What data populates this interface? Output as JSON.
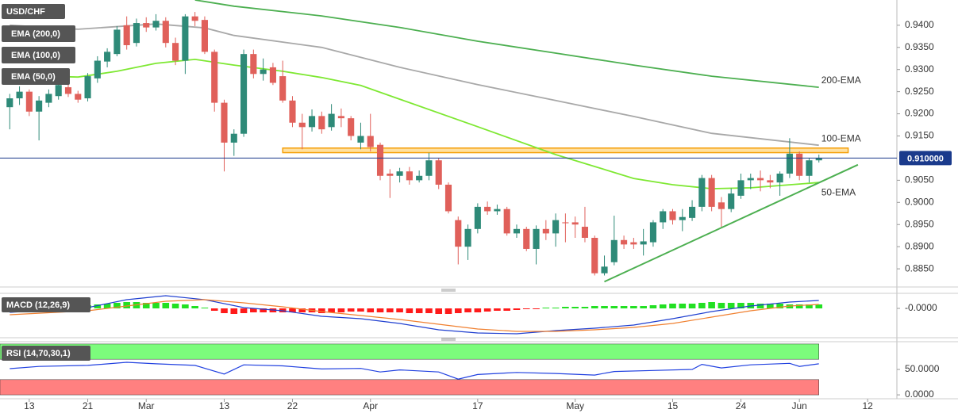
{
  "chart_data": [
    {
      "type": "candlestick",
      "title": "USD/CHF",
      "open": [
        0.9215,
        0.9235,
        0.925,
        0.9205,
        0.9225,
        0.924,
        0.926,
        0.9245,
        0.9235,
        0.928,
        0.9318,
        0.9335,
        0.94,
        0.936,
        0.9405,
        0.9395,
        0.941,
        0.936,
        0.932,
        0.942,
        0.9412,
        0.934,
        0.9225,
        0.9135,
        0.9155,
        0.9335,
        0.929,
        0.9305,
        0.9285,
        0.923,
        0.918,
        0.917,
        0.9195,
        0.917,
        0.9195,
        0.919,
        0.9135,
        0.915,
        0.913,
        0.9065,
        0.906,
        0.907,
        0.905,
        0.906,
        0.9095,
        0.904,
        0.896,
        0.89,
        0.894,
        0.899,
        0.898,
        0.8985,
        0.893,
        0.894,
        0.8895,
        0.894,
        0.893,
        0.8955,
        0.8955,
        0.8945,
        0.892,
        0.884,
        0.8865,
        0.8915,
        0.891,
        0.8905,
        0.891,
        0.8955,
        0.898,
        0.896,
        0.8965,
        0.899,
        0.9055,
        0.9,
        0.8985,
        0.9015,
        0.905,
        0.9055,
        0.905,
        0.9045,
        0.9065,
        0.911,
        0.906,
        0.9095
      ],
      "high": [
        0.9245,
        0.9262,
        0.9255,
        0.924,
        0.9255,
        0.929,
        0.93,
        0.9252,
        0.9292,
        0.933,
        0.9348,
        0.9398,
        0.942,
        0.9415,
        0.9418,
        0.9425,
        0.9418,
        0.9372,
        0.9425,
        0.943,
        0.942,
        0.9345,
        0.9232,
        0.9165,
        0.9345,
        0.9345,
        0.9325,
        0.9315,
        0.932,
        0.924,
        0.92,
        0.921,
        0.9205,
        0.9222,
        0.9212,
        0.9195,
        0.918,
        0.92,
        0.9135,
        0.9075,
        0.9078,
        0.908,
        0.9072,
        0.9112,
        0.91,
        0.9045,
        0.8968,
        0.895,
        0.8998,
        0.9002,
        0.8995,
        0.899,
        0.895,
        0.8945,
        0.8948,
        0.896,
        0.8975,
        0.8975,
        0.8968,
        0.899,
        0.8925,
        0.888,
        0.897,
        0.8925,
        0.892,
        0.894,
        0.896,
        0.8985,
        0.8985,
        0.8985,
        0.9005,
        0.9062,
        0.9062,
        0.9012,
        0.9032,
        0.9065,
        0.9065,
        0.9072,
        0.9062,
        0.907,
        0.9145,
        0.9115,
        0.91,
        0.9108
      ],
      "low": [
        0.9165,
        0.922,
        0.9195,
        0.914,
        0.9215,
        0.9232,
        0.9238,
        0.9225,
        0.9228,
        0.927,
        0.9305,
        0.933,
        0.9345,
        0.9352,
        0.9385,
        0.9388,
        0.935,
        0.931,
        0.929,
        0.9398,
        0.9335,
        0.9205,
        0.907,
        0.9105,
        0.9148,
        0.928,
        0.9275,
        0.9265,
        0.9225,
        0.917,
        0.912,
        0.916,
        0.9155,
        0.9162,
        0.917,
        0.914,
        0.912,
        0.9115,
        0.905,
        0.901,
        0.9045,
        0.904,
        0.9045,
        0.905,
        0.903,
        0.8975,
        0.886,
        0.887,
        0.893,
        0.8972,
        0.8972,
        0.8925,
        0.892,
        0.889,
        0.886,
        0.8915,
        0.89,
        0.891,
        0.892,
        0.891,
        0.8835,
        0.8835,
        0.8858,
        0.8895,
        0.8895,
        0.888,
        0.89,
        0.894,
        0.895,
        0.8935,
        0.8958,
        0.898,
        0.898,
        0.8945,
        0.8978,
        0.9008,
        0.903,
        0.9025,
        0.9032,
        0.9015,
        0.9055,
        0.905,
        0.9045,
        0.909
      ],
      "close": [
        0.9235,
        0.925,
        0.9205,
        0.923,
        0.9245,
        0.9265,
        0.9245,
        0.9232,
        0.9285,
        0.932,
        0.934,
        0.939,
        0.9355,
        0.9405,
        0.9395,
        0.941,
        0.936,
        0.932,
        0.942,
        0.941,
        0.934,
        0.9225,
        0.9135,
        0.9155,
        0.9335,
        0.929,
        0.93,
        0.927,
        0.923,
        0.918,
        0.917,
        0.9195,
        0.9165,
        0.92,
        0.919,
        0.915,
        0.915,
        0.9125,
        0.906,
        0.906,
        0.907,
        0.905,
        0.906,
        0.9095,
        0.904,
        0.898,
        0.89,
        0.894,
        0.899,
        0.898,
        0.8985,
        0.893,
        0.894,
        0.8895,
        0.894,
        0.893,
        0.896,
        0.8953,
        0.895,
        0.892,
        0.884,
        0.8855,
        0.8915,
        0.8905,
        0.8905,
        0.8912,
        0.8955,
        0.898,
        0.896,
        0.8967,
        0.899,
        0.9055,
        0.899,
        0.8985,
        0.902,
        0.905,
        0.9055,
        0.905,
        0.9045,
        0.9065,
        0.911,
        0.906,
        0.9095,
        0.91
      ],
      "up_color": "#2e8a78",
      "down_color": "#e0605a",
      "xlim": [
        -1,
        91
      ],
      "xticks": [
        {
          "value": 2,
          "label": "13"
        },
        {
          "value": 8,
          "label": "21"
        },
        {
          "value": 14,
          "label": "Mar"
        },
        {
          "value": 22,
          "label": "13"
        },
        {
          "value": 29,
          "label": "22"
        },
        {
          "value": 37,
          "label": "Apr"
        },
        {
          "value": 48,
          "label": "17"
        },
        {
          "value": 58,
          "label": "May"
        },
        {
          "value": 68,
          "label": "15"
        },
        {
          "value": 75,
          "label": "24"
        },
        {
          "value": 81,
          "label": "Jun"
        },
        {
          "value": 88,
          "label": "12"
        }
      ],
      "ylim": [
        0.8809,
        0.9457
      ],
      "yticks": [
        {
          "value": 0.94,
          "label": "0.9400"
        },
        {
          "value": 0.935,
          "label": "0.9350"
        },
        {
          "value": 0.93,
          "label": "0.9300"
        },
        {
          "value": 0.925,
          "label": "0.9250"
        },
        {
          "value": 0.92,
          "label": "0.9200"
        },
        {
          "value": 0.915,
          "label": "0.9150"
        },
        {
          "value": 0.905,
          "label": "0.9050"
        },
        {
          "value": 0.9,
          "label": "0.9000"
        },
        {
          "value": 0.895,
          "label": "0.8950"
        },
        {
          "value": 0.89,
          "label": "0.8900"
        },
        {
          "value": 0.885,
          "label": "0.8850"
        }
      ],
      "lines": [
        {
          "name": "EMA (200,0)",
          "annotation": "200-EMA",
          "color": "#4caf50",
          "x": [
            19,
            23,
            32,
            40,
            48,
            56,
            64,
            72,
            83
          ],
          "values": [
            0.9457,
            0.9443,
            0.9421,
            0.9395,
            0.9364,
            0.9337,
            0.931,
            0.9285,
            0.926
          ]
        },
        {
          "name": "EMA (100,0)",
          "annotation": "100-EMA",
          "color": "#a8a8a8",
          "x": [
            0,
            7,
            15,
            20,
            23,
            32,
            40,
            48,
            56,
            64,
            72,
            83
          ],
          "values": [
            0.94,
            0.9391,
            0.9403,
            0.9394,
            0.9377,
            0.935,
            0.9305,
            0.9266,
            0.923,
            0.9194,
            0.9156,
            0.9129
          ]
        },
        {
          "name": "EMA (50,0)",
          "annotation": "50-EMA",
          "color": "#7ee832",
          "x": [
            0,
            7,
            11,
            15,
            19,
            23,
            28,
            32,
            36,
            40,
            48,
            56,
            60,
            64,
            68,
            72,
            76,
            83
          ],
          "values": [
            0.9287,
            0.9283,
            0.9296,
            0.9314,
            0.9323,
            0.931,
            0.9296,
            0.9282,
            0.9264,
            0.9233,
            0.9171,
            0.9108,
            0.9081,
            0.9054,
            0.904,
            0.9031,
            0.9033,
            0.9045
          ]
        }
      ],
      "support": {
        "color": "#f5a00a",
        "x": [
          28,
          86
        ],
        "values": [
          0.9115,
          0.912
        ]
      },
      "trendline": {
        "color": "#4caf50",
        "x": [
          61,
          87
        ],
        "values": [
          0.8821,
          0.9085
        ]
      },
      "last_price": {
        "value": 0.91,
        "label": "0.910000",
        "color": "#1a3a8c"
      }
    },
    {
      "type": "macd",
      "title": "MACD (12,26,9)",
      "ylim": [
        -0.0037,
        0.0018
      ],
      "yticks": [
        {
          "value": 0,
          "label": "-0.0000"
        }
      ],
      "histogram": [
        0.0003,
        0.0003,
        0.0003,
        0.0004,
        0.0004,
        0.0004,
        0.0004,
        0.0004,
        0.0004,
        0.0005,
        0.0006,
        0.0007,
        0.0008,
        0.0008,
        0.0007,
        0.0007,
        0.0007,
        0.0006,
        0.0005,
        0.0003,
        0.0001,
        -0.0003,
        -0.0006,
        -0.0007,
        -0.0006,
        -0.0005,
        -0.0005,
        -0.0005,
        -0.0005,
        -0.0005,
        -0.0005,
        -0.0005,
        -0.0006,
        -0.0005,
        -0.0005,
        -0.0004,
        -0.0004,
        -0.0005,
        -0.0005,
        -0.0005,
        -0.0005,
        -0.0006,
        -0.0006,
        -0.0006,
        -0.0007,
        -0.0007,
        -0.0006,
        -0.0005,
        -0.0005,
        -0.0004,
        -0.0003,
        -0.0003,
        -0.0002,
        -0.0001,
        -0.0001,
        0.0001,
        0.0001,
        0.0002,
        0.0002,
        0.0002,
        0.0003,
        0.0003,
        0.0003,
        0.0003,
        0.0003,
        0.0003,
        0.0004,
        0.0005,
        0.0006,
        0.0006,
        0.0006,
        0.0007,
        0.0008,
        0.0007,
        0.0007,
        0.0007,
        0.0007,
        0.0006,
        0.0006,
        0.0006,
        0.0005,
        0.0005,
        0.0005,
        0.0005
      ],
      "up_color": "#22e022",
      "down_color": "#ff1a1a",
      "lines": [
        {
          "color": "#1f3fd0",
          "x": [
            0,
            8,
            12,
            16,
            20,
            24,
            28,
            32,
            36,
            40,
            44,
            48,
            52,
            56,
            60,
            64,
            68,
            72,
            76,
            80,
            83
          ],
          "values": [
            -0.0005,
            0.0001,
            0.0011,
            0.0016,
            0.0011,
            0.0001,
            -0.0003,
            -0.001,
            -0.0013,
            -0.0019,
            -0.0027,
            -0.0031,
            -0.0032,
            -0.0028,
            -0.0025,
            -0.0021,
            -0.0013,
            -0.0004,
            0.0003,
            0.0008,
            0.001
          ]
        },
        {
          "color": "#f08030",
          "x": [
            0,
            8,
            12,
            16,
            20,
            24,
            28,
            32,
            36,
            40,
            44,
            48,
            52,
            56,
            60,
            64,
            68,
            72,
            76,
            80,
            83
          ],
          "values": [
            -0.0008,
            -0.0003,
            0.0003,
            0.0009,
            0.0011,
            0.0007,
            0.0002,
            -0.0004,
            -0.0009,
            -0.0014,
            -0.002,
            -0.0026,
            -0.0029,
            -0.0029,
            -0.0027,
            -0.0024,
            -0.0019,
            -0.0011,
            -0.0003,
            0.0003,
            0.0005
          ]
        }
      ]
    },
    {
      "type": "rsi",
      "title": "RSI (14,70,30,1)",
      "ylim": [
        -3,
        103
      ],
      "yticks": [
        {
          "value": 50,
          "label": "50.0000"
        },
        {
          "value": 0,
          "label": "0.0000"
        }
      ],
      "bands": [
        {
          "values": [
            70,
            100
          ],
          "color": "#7cfc7c"
        },
        {
          "values": [
            0,
            30
          ],
          "color": "#ff8080"
        }
      ],
      "lines": [
        {
          "color": "#2040e0",
          "x": [
            0,
            3,
            8,
            12,
            15,
            19,
            22,
            24,
            28,
            32,
            36,
            38,
            40,
            44,
            46,
            48,
            52,
            56,
            60,
            62,
            66,
            70,
            71,
            73,
            76,
            80,
            81,
            83
          ],
          "values": [
            51.6,
            56,
            58,
            64,
            61,
            58,
            41,
            59,
            57,
            51,
            52,
            45,
            49,
            45,
            31,
            40,
            44,
            42,
            39,
            46,
            48,
            50,
            60,
            53,
            59,
            62,
            56,
            61
          ]
        }
      ]
    }
  ]
}
